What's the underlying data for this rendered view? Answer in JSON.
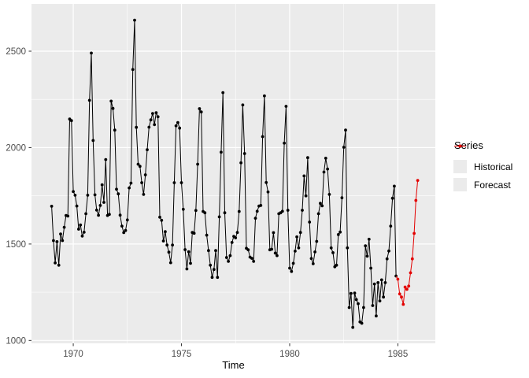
{
  "figure": {
    "background": "#ffffff",
    "panel_background": "#EBEBEB",
    "gridline_color": "#FFFFFF",
    "tick_label_color": "#4D4D4D",
    "tick_mark_color": "#333333"
  },
  "chart_data": {
    "type": "line",
    "title": "",
    "xlabel": "Time",
    "ylabel": "",
    "legend_title": "Series",
    "legend_position": "right",
    "grid": "on",
    "xlim": [
      1968.07,
      1986.73
    ],
    "ylim": [
      985,
      2745
    ],
    "x_ticks": [
      1970,
      1975,
      1980,
      1985
    ],
    "x_minor_ticks": [
      1972.5,
      1977.5,
      1982.5
    ],
    "y_ticks": [
      1000,
      1500,
      2000,
      2500
    ],
    "y_minor_ticks": [
      1250,
      1750,
      2250
    ],
    "frequency": "monthly",
    "series": [
      {
        "name": "Historical",
        "color": "#000000",
        "start_year": 1969,
        "start_month": 1,
        "values": [
          1696,
          1518,
          1402,
          1512,
          1390,
          1552,
          1518,
          1587,
          1648,
          1645,
          2148,
          2140,
          1772,
          1753,
          1697,
          1577,
          1599,
          1541,
          1561,
          1657,
          1753,
          2245,
          2490,
          2037,
          1755,
          1676,
          1649,
          1700,
          1807,
          1716,
          1938,
          1648,
          1654,
          2241,
          2203,
          2091,
          1784,
          1760,
          1650,
          1593,
          1559,
          1570,
          1625,
          1791,
          1816,
          2405,
          2661,
          2105,
          1914,
          1903,
          1818,
          1757,
          1859,
          1989,
          2106,
          2144,
          2177,
          2119,
          2181,
          2160,
          1639,
          1623,
          1516,
          1564,
          1495,
          1458,
          1403,
          1495,
          1818,
          2113,
          2130,
          2101,
          1818,
          1680,
          1471,
          1371,
          1460,
          1400,
          1560,
          1556,
          1674,
          1914,
          2202,
          2185,
          1669,
          1662,
          1546,
          1466,
          1390,
          1327,
          1368,
          1466,
          1327,
          1641,
          1976,
          2285,
          1662,
          1430,
          1410,
          1440,
          1508,
          1540,
          1532,
          1560,
          1669,
          1921,
          2221,
          1969,
          1478,
          1470,
          1432,
          1426,
          1410,
          1634,
          1670,
          1697,
          1700,
          2057,
          2268,
          1819,
          1770,
          1470,
          1473,
          1559,
          1453,
          1440,
          1657,
          1662,
          1670,
          2023,
          2214,
          1675,
          1375,
          1358,
          1400,
          1463,
          1537,
          1480,
          1560,
          1675,
          1853,
          1750,
          1948,
          1614,
          1425,
          1398,
          1459,
          1514,
          1657,
          1711,
          1698,
          1873,
          1945,
          1889,
          1757,
          1480,
          1455,
          1382,
          1390,
          1549,
          1562,
          1740,
          2002,
          2091,
          1480,
          1171,
          1244,
          1068,
          1246,
          1212,
          1191,
          1096,
          1089,
          1171,
          1491,
          1437,
          1525,
          1375,
          1181,
          1293,
          1127,
          1300,
          1205,
          1314,
          1225,
          1300,
          1423,
          1464,
          1593,
          1737,
          1800,
          1334
        ]
      },
      {
        "name": "Forecast",
        "color": "#E30000",
        "start_year": 1985,
        "start_month": 1,
        "values": [
          1318,
          1241,
          1225,
          1187,
          1277,
          1265,
          1282,
          1351,
          1423,
          1555,
          1726,
          1830
        ]
      }
    ]
  },
  "legend": {
    "title": "Series",
    "items": [
      {
        "label": "Historical",
        "color": "#000000"
      },
      {
        "label": "Forecast",
        "color": "#E30000"
      }
    ]
  }
}
